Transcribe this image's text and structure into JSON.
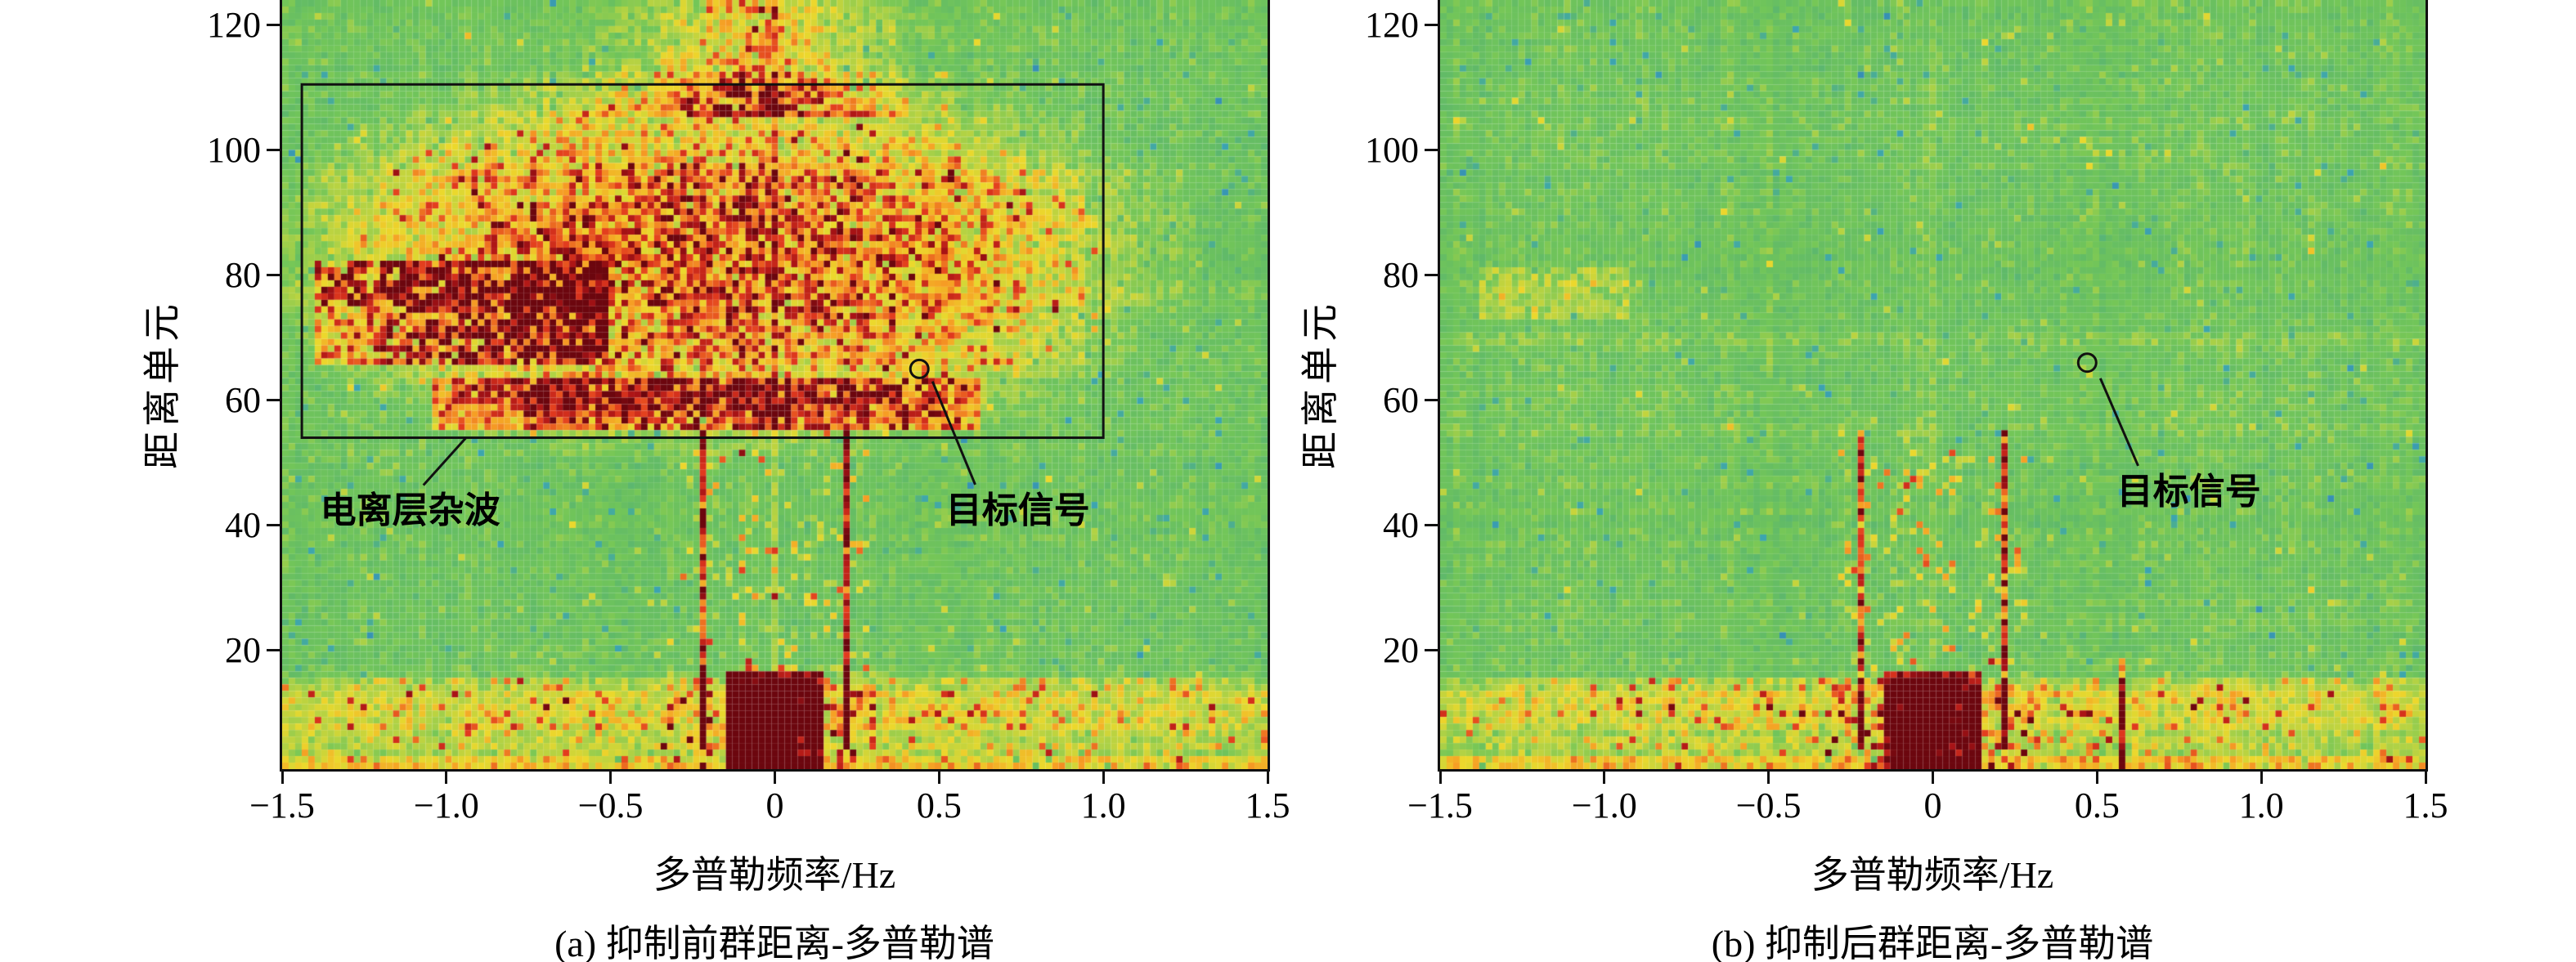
{
  "panels": [
    {
      "id": "a",
      "caption": "(a) 抑制前群距离-多普勒谱",
      "xlabel": "多普勒频率/Hz",
      "ylabel": "距离单元",
      "x_ticks": [
        -1.5,
        -1.0,
        -0.5,
        0,
        0.5,
        1.0,
        1.5
      ],
      "x_tick_labels": [
        "−1.5",
        "−1.0",
        "−0.5",
        "0",
        "0.5",
        "1.0",
        "1.5"
      ],
      "y_ticks": [
        20,
        40,
        60,
        80,
        100,
        120
      ],
      "y_tick_labels": [
        "20",
        "40",
        "60",
        "80",
        "100",
        "120"
      ],
      "annotations": {
        "clutter_box": {
          "f0": -1.44,
          "f1": 1.0,
          "r0": 54,
          "r1": 110.5
        },
        "clutter_leader": {
          "f0": -1.07,
          "r0": 46.4,
          "f1": -0.94,
          "r1": 54
        },
        "clutter_label": {
          "text": "电离层杂波",
          "f": -1.11,
          "r": 45.5
        },
        "target_circle": {
          "f": 0.44,
          "r": 65,
          "radius": 11
        },
        "target_leader": {
          "f0": 0.48,
          "r0": 63,
          "f1": 0.61,
          "r1": 46.5
        },
        "target_label": {
          "text": "目标信号",
          "f": 0.74,
          "r": 45.5
        }
      }
    },
    {
      "id": "b",
      "caption": "(b) 抑制后群距离-多普勒谱",
      "xlabel": "多普勒频率/Hz",
      "ylabel": "距离单元",
      "x_ticks": [
        -1.5,
        -1.0,
        -0.5,
        0,
        0.5,
        1.0,
        1.5
      ],
      "x_tick_labels": [
        "−1.5",
        "−1.0",
        "−0.5",
        "0",
        "0.5",
        "1.0",
        "1.5"
      ],
      "y_ticks": [
        20,
        40,
        60,
        80,
        100,
        120
      ],
      "y_tick_labels": [
        "20",
        "40",
        "60",
        "80",
        "100",
        "120"
      ],
      "annotations": {
        "target_circle": {
          "f": 0.47,
          "r": 66,
          "radius": 11
        },
        "target_leader": {
          "f0": 0.51,
          "r0": 63.5,
          "f1": 0.625,
          "r1": 49.5
        },
        "target_label": {
          "text": "目标信号",
          "f": 0.78,
          "r": 48.5
        }
      }
    }
  ],
  "chart_data": [
    {
      "type": "heatmap",
      "title": "(a) 抑制前群距离-多普勒谱",
      "xlabel": "多普勒频率/Hz",
      "ylabel": "距离单元",
      "xlim": [
        -1.5,
        1.5
      ],
      "ylim": [
        1,
        124
      ],
      "x_ticks": [
        -1.5,
        -1.0,
        -0.5,
        0,
        0.5,
        1.0,
        1.5
      ],
      "y_ticks": [
        20,
        40,
        60,
        80,
        100,
        120
      ],
      "colormap": "jet",
      "background": "green noise floor with sparse cyan/blue and yellow speckles",
      "features": [
        {
          "name": "ionospheric_clutter_blob",
          "doppler_hz": [
            -1.45,
            1.1
          ],
          "range_cells": [
            55,
            112
          ],
          "intensity": "strong red/orange mass, dense dark-red core at [-1.3,0.6] Hz, 58-88 cells"
        },
        {
          "name": "clutter_top_plume",
          "doppler_hz": [
            -0.6,
            0.5
          ],
          "range_cells": [
            105,
            124
          ],
          "intensity": "orange/red extending to top edge"
        },
        {
          "name": "clutter_red_rim",
          "doppler_hz": [
            -1.05,
            0.6
          ],
          "range_cells": [
            55,
            64
          ],
          "intensity": "dark red lower arc"
        },
        {
          "name": "vertical_clutter_ridges",
          "doppler_hz": [
            -0.22,
            0.22
          ],
          "range_cells": [
            4,
            55
          ],
          "intensity": "narrow strong red vertical lines at ±0.22 Hz with scattered red speckles between"
        },
        {
          "name": "near_range_band",
          "doppler_hz": [
            -1.5,
            1.5
          ],
          "range_cells": [
            1,
            16
          ],
          "intensity": "yellow band with red speckles, dark-red core near 0 Hz"
        },
        {
          "name": "target",
          "doppler_hz": [
            0.44,
            0.44
          ],
          "range_cells": [
            65,
            65
          ],
          "intensity": "marked by open circle"
        }
      ],
      "annotations": [
        "电离层杂波 (boxed region)",
        "目标信号 (circle marker with leader line)"
      ]
    },
    {
      "type": "heatmap",
      "title": "(b) 抑制后群距离-多普勒谱",
      "xlabel": "多普勒频率/Hz",
      "ylabel": "距离单元",
      "xlim": [
        -1.5,
        1.5
      ],
      "ylim": [
        1,
        124
      ],
      "x_ticks": [
        -1.5,
        -1.0,
        -0.5,
        0,
        0.5,
        1.0,
        1.5
      ],
      "y_ticks": [
        20,
        40,
        60,
        80,
        100,
        120
      ],
      "colormap": "jet",
      "background": "green noise floor with sparse cyan/blue and yellow speckles; ionospheric clutter removed",
      "features": [
        {
          "name": "residual_patch",
          "doppler_hz": [
            -1.38,
            -0.92
          ],
          "range_cells": [
            73,
            81
          ],
          "intensity": "faint yellow"
        },
        {
          "name": "vertical_clutter_ridges",
          "doppler_hz": [
            -0.22,
            0.22
          ],
          "range_cells": [
            4,
            55
          ],
          "intensity": "narrow strong red vertical lines at ±0.22 Hz"
        },
        {
          "name": "near_range_band",
          "doppler_hz": [
            -1.5,
            1.5
          ],
          "range_cells": [
            1,
            16
          ],
          "intensity": "yellow band with red speckles, dark-red core near 0 Hz"
        },
        {
          "name": "target",
          "doppler_hz": [
            0.47,
            0.47
          ],
          "range_cells": [
            66,
            66
          ],
          "intensity": "marked by open circle"
        }
      ],
      "annotations": [
        "目标信号 (circle marker with leader line)"
      ]
    }
  ]
}
